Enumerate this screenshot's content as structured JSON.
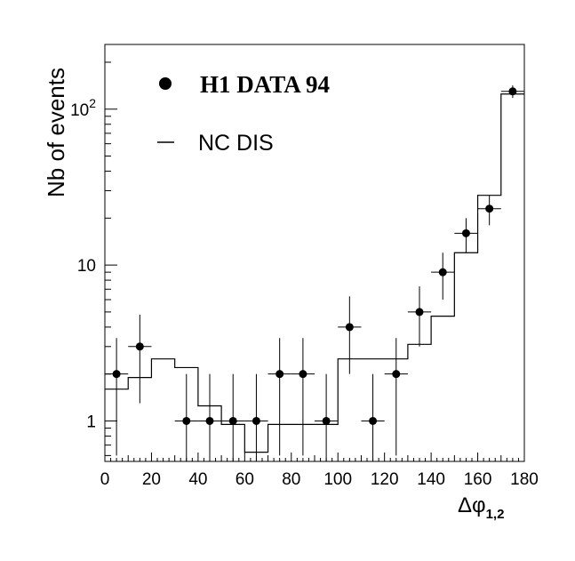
{
  "chart_data": {
    "type": "scatter",
    "xlabel": "Δφ",
    "xlabel_subscript": "1,2",
    "ylabel": "Nb of events",
    "xlim": [
      0,
      180
    ],
    "ylim": [
      0.55,
      260
    ],
    "yscale": "log",
    "grid": false,
    "legend_position": "top-left",
    "x_ticks": [
      0,
      20,
      40,
      60,
      80,
      100,
      120,
      140,
      160,
      180
    ],
    "x_tick_labels": [
      "0",
      "20",
      "40",
      "60",
      "80",
      "100",
      "120",
      "140",
      "160",
      "180"
    ],
    "y_tick_labels": [
      {
        "value": 1,
        "base": "1",
        "exp": ""
      },
      {
        "value": 10,
        "base": "10",
        "exp": ""
      },
      {
        "value": 100,
        "base": "10",
        "exp": "2"
      }
    ],
    "series": [
      {
        "name": "H1 DATA 94",
        "kind": "points-with-errors",
        "x": [
          5,
          15,
          35,
          45,
          55,
          65,
          75,
          85,
          95,
          105,
          115,
          125,
          135,
          145,
          155,
          165,
          175
        ],
        "y": [
          2,
          3,
          1,
          1,
          1,
          1,
          2,
          2,
          1,
          4,
          1,
          2,
          5,
          9,
          16,
          23,
          130
        ],
        "y_low": [
          0.6,
          1.3,
          0.3,
          0.3,
          0.3,
          0.3,
          0.6,
          0.6,
          0.3,
          2.0,
          0.3,
          0.6,
          3.0,
          6.0,
          12.0,
          18.0,
          118
        ],
        "y_high": [
          3.4,
          4.8,
          2.0,
          2.0,
          2.0,
          2.0,
          3.4,
          3.4,
          2.0,
          6.3,
          2.0,
          3.4,
          7.3,
          12.0,
          20.0,
          28.0,
          142
        ],
        "x_halfwidth": 5
      },
      {
        "name": "NC DIS",
        "kind": "step-histogram",
        "bin_edges": [
          0,
          10,
          20,
          30,
          40,
          50,
          60,
          70,
          80,
          90,
          100,
          110,
          120,
          130,
          140,
          150,
          160,
          170,
          180
        ],
        "values": [
          1.6,
          1.9,
          2.5,
          2.2,
          1.25,
          0.95,
          0.63,
          0.95,
          0.95,
          0.95,
          2.5,
          2.5,
          2.5,
          3.1,
          4.7,
          12,
          28,
          125
        ]
      }
    ],
    "colors": {
      "axis": "#000000",
      "data": "#000000",
      "mc": "#000000"
    }
  }
}
